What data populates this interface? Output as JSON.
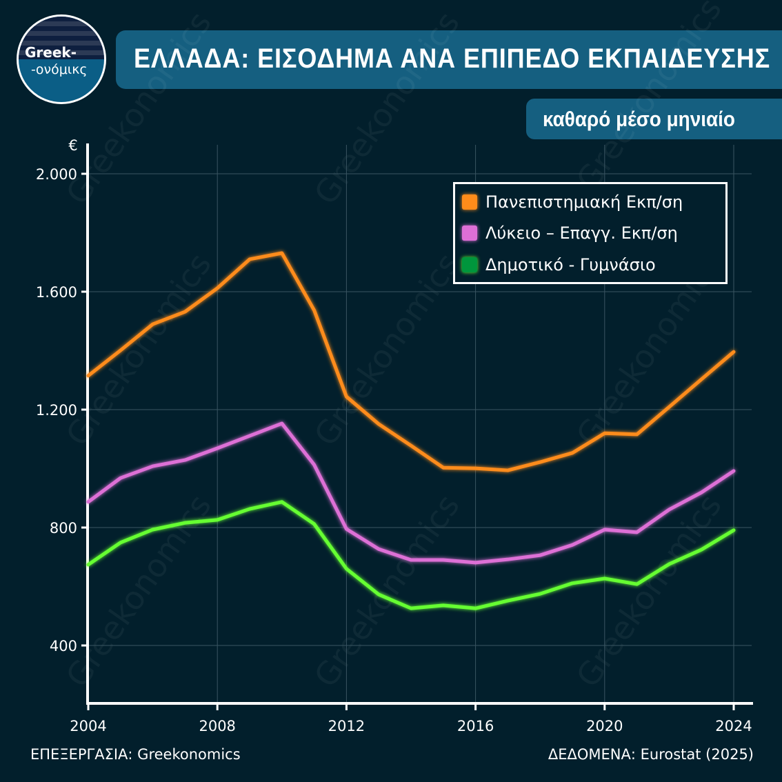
{
  "logo": {
    "line1": "Greek-",
    "line2": "-ονόμικς"
  },
  "title": "ΕΛΛΑΔΑ: ΕΙΣΟΔΗΜΑ ΑΝΑ ΕΠΙΠΕΔΟ ΕΚΠΑΙΔΕΥΣΗΣ",
  "subtitle": "καθαρό μέσο μηνιαίο",
  "footer": {
    "left": "ΕΠΕΞΕΡΓΑΣΙΑ: Greekonomics",
    "right": "ΔΕΔΟΜΕΝΑ: Eurostat (2025)"
  },
  "watermark": "Greekonomics",
  "chart_data": {
    "type": "line",
    "title": "ΕΛΛΑΔΑ: ΕΙΣΟΔΗΜΑ ΑΝΑ ΕΠΙΠΕΔΟ ΕΚΠΑΙΔΕΥΣΗΣ",
    "subtitle": "καθαρό μέσο μηνιαίο",
    "ylabel": "€",
    "xlim": [
      2004,
      2024.6
    ],
    "ylim": [
      200,
      2100
    ],
    "xticks": [
      2004,
      2008,
      2012,
      2016,
      2020,
      2024
    ],
    "xtick_labels": [
      "2004",
      "2008",
      "2012",
      "2016",
      "2020",
      "2024"
    ],
    "yticks": [
      400,
      800,
      1200,
      1600,
      2000
    ],
    "ytick_labels": [
      "400",
      "800",
      "1.200",
      "1.600",
      "2.000"
    ],
    "grid": true,
    "legend_position": "top-right",
    "x": [
      2004,
      2005,
      2006,
      2007,
      2008,
      2009,
      2010,
      2011,
      2012,
      2013,
      2014,
      2015,
      2016,
      2017,
      2018,
      2019,
      2020,
      2021,
      2022,
      2023,
      2024
    ],
    "series": [
      {
        "name": "Πανεπιστημιακή Εκπ/ση",
        "color": "#ff8c1a",
        "swatch": "#ff8c1a",
        "values": [
          1315,
          1401,
          1490,
          1532,
          1612,
          1710,
          1731,
          1537,
          1244,
          1151,
          1078,
          1003,
          1001,
          994,
          1022,
          1053,
          1120,
          1116,
          1209,
          1303,
          1396
        ]
      },
      {
        "name": "Λύκειο – Επαγγ. Εκπ/ση",
        "color": "#dd6fd6",
        "swatch": "#dd6fd6",
        "values": [
          887,
          968,
          1008,
          1029,
          1069,
          1111,
          1153,
          1013,
          795,
          727,
          690,
          690,
          681,
          692,
          706,
          741,
          793,
          784,
          861,
          919,
          992
        ]
      },
      {
        "name": "Δημοτικό - Γυμνάσιο",
        "color": "#66ff33",
        "swatch": "#00963c",
        "values": [
          674,
          749,
          793,
          816,
          826,
          863,
          887,
          812,
          660,
          573,
          526,
          536,
          526,
          552,
          575,
          611,
          627,
          608,
          676,
          725,
          791
        ]
      }
    ]
  }
}
